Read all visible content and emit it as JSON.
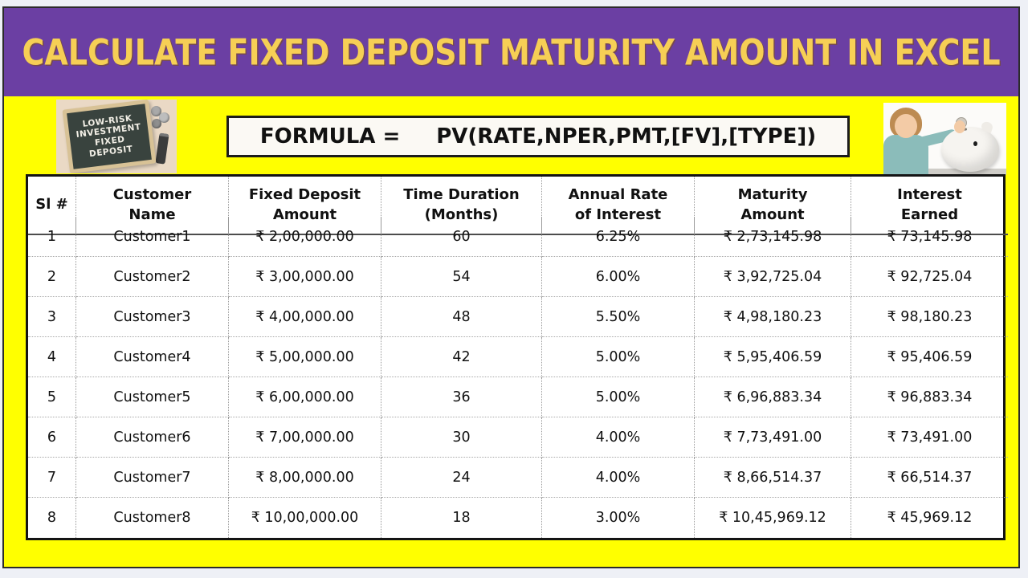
{
  "page": {
    "title": "CALCULATE FIXED DEPOSIT MATURITY AMOUNT IN EXCEL"
  },
  "formula": {
    "label": "FORMULA =",
    "expression": "PV(RATE,NPER,PMT,[FV],[TYPE])"
  },
  "images": {
    "chalkboard_text": "LOW-RISK\nINVESTMENT\nFIXED\nDEPOSIT"
  },
  "table": {
    "headers": [
      "Sl #",
      "Customer\nName",
      "Fixed Deposit\nAmount",
      "Time Duration\n(Months)",
      "Annual Rate\nof Interest",
      "Maturity\nAmount",
      "Interest\nEarned"
    ],
    "rows": [
      [
        "1",
        "Customer1",
        "₹ 2,00,000.00",
        "60",
        "6.25%",
        "₹ 2,73,145.98",
        "₹ 73,145.98"
      ],
      [
        "2",
        "Customer2",
        "₹ 3,00,000.00",
        "54",
        "6.00%",
        "₹ 3,92,725.04",
        "₹ 92,725.04"
      ],
      [
        "3",
        "Customer3",
        "₹ 4,00,000.00",
        "48",
        "5.50%",
        "₹ 4,98,180.23",
        "₹ 98,180.23"
      ],
      [
        "4",
        "Customer4",
        "₹ 5,00,000.00",
        "42",
        "5.00%",
        "₹ 5,95,406.59",
        "₹ 95,406.59"
      ],
      [
        "5",
        "Customer5",
        "₹ 6,00,000.00",
        "36",
        "5.00%",
        "₹ 6,96,883.34",
        "₹ 96,883.34"
      ],
      [
        "6",
        "Customer6",
        "₹ 7,00,000.00",
        "30",
        "4.00%",
        "₹ 7,73,491.00",
        "₹ 73,491.00"
      ],
      [
        "7",
        "Customer7",
        "₹ 8,00,000.00",
        "24",
        "4.00%",
        "₹ 8,66,514.37",
        "₹ 66,514.37"
      ],
      [
        "8",
        "Customer8",
        "₹ 10,00,000.00",
        "18",
        "3.00%",
        "₹ 10,45,969.12",
        "₹ 45,969.12"
      ]
    ]
  },
  "colors": {
    "banner_purple": "#6B3FA3",
    "title_yellow": "#F6CF55",
    "body_yellow": "#FFFF00"
  }
}
